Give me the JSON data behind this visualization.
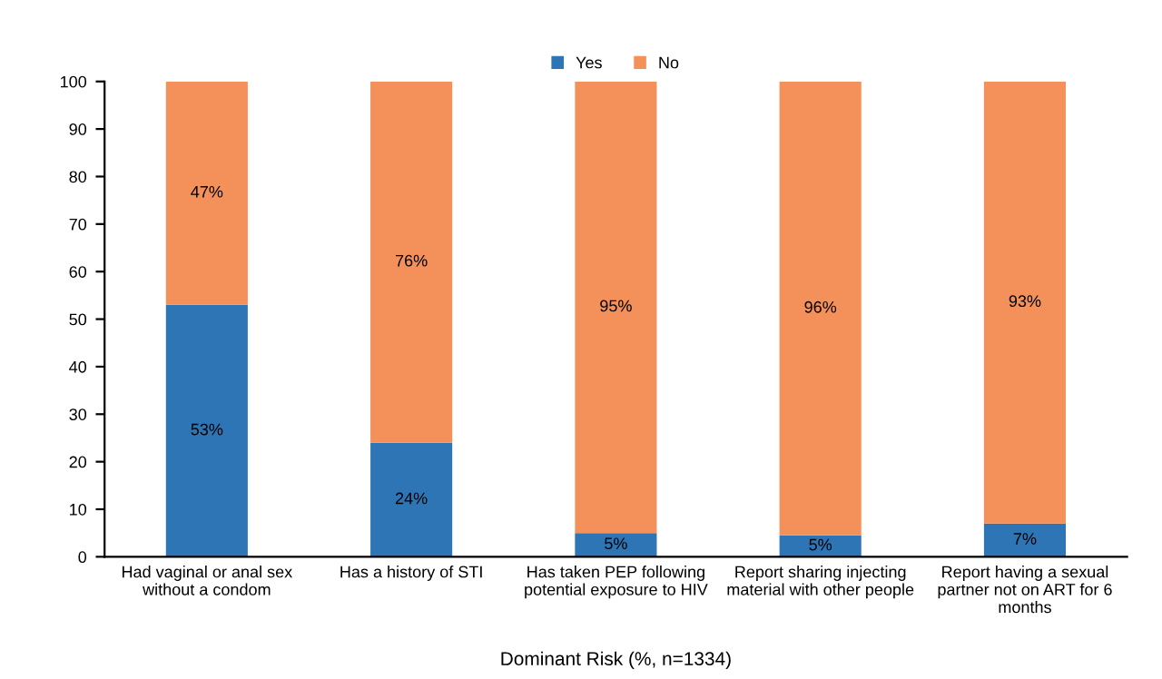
{
  "chart_data": {
    "type": "bar",
    "stacked": true,
    "xlabel": "Dominant Risk (%, n=1334)",
    "categories": [
      "Had vaginal or anal sex\nwithout a condom",
      "Has a history of STI",
      "Has taken PEP following\npotential exposure to HIV",
      "Report sharing injecting\nmaterial with other people",
      "Report having a sexual\npartner not on ART for 6\nmonths"
    ],
    "series": [
      {
        "name": "Yes",
        "color": "#2e75b6",
        "values": [
          53,
          24,
          5,
          4.5,
          7
        ],
        "value_labels": [
          "53%",
          "24%",
          "5%",
          "5%",
          "7%"
        ]
      },
      {
        "name": "No",
        "color": "#f4905a",
        "values": [
          47,
          76,
          95,
          95.5,
          93
        ],
        "value_labels": [
          "47%",
          "76%",
          "95%",
          "96%",
          "93%"
        ]
      }
    ],
    "ylim": [
      0,
      100
    ],
    "yticks": [
      0,
      10,
      20,
      30,
      40,
      50,
      60,
      70,
      80,
      90,
      100
    ],
    "grid": false,
    "legend": "top"
  }
}
